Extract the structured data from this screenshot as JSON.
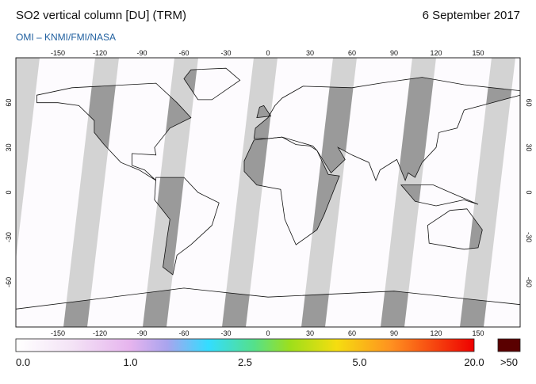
{
  "header": {
    "title": "SO2 vertical column [DU] (TRM)",
    "date": "6 September 2017",
    "subtitle": "OMI  –  KNMI/FMI/NASA"
  },
  "map": {
    "lon_ticks": [
      -150,
      -120,
      -90,
      -60,
      -30,
      0,
      30,
      60,
      90,
      120,
      150
    ],
    "lat_ticks": [
      60,
      30,
      0,
      -30,
      -60
    ]
  },
  "colorbar": {
    "labels": [
      "0.0",
      "1.0",
      "2.5",
      "5.0",
      "20.0"
    ],
    "overflow_label": ">50"
  }
}
